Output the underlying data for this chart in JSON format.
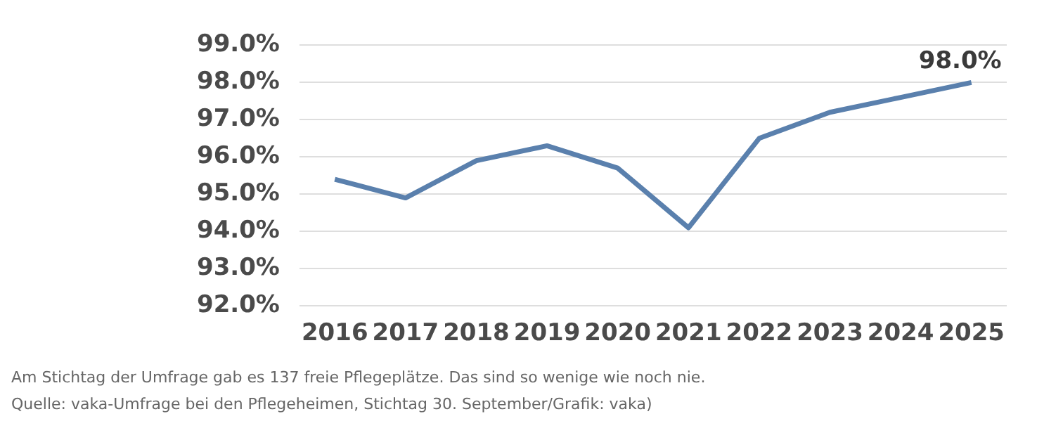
{
  "chart_data": {
    "type": "line",
    "categories": [
      "2016",
      "2017",
      "2018",
      "2019",
      "2020",
      "2021",
      "2022",
      "2023",
      "2024",
      "2025"
    ],
    "series": [
      {
        "color": "#5a80ad",
        "values": [
          95.4,
          94.9,
          95.9,
          96.3,
          95.7,
          94.1,
          96.5,
          97.2,
          97.6,
          98.0
        ],
        "value_labels": [
          null,
          null,
          null,
          null,
          null,
          null,
          null,
          null,
          null,
          "98.0%"
        ]
      }
    ],
    "ylim": [
      92,
      99
    ],
    "yticks": [
      {
        "value": 92,
        "label": "92.0%"
      },
      {
        "value": 93,
        "label": "93.0%"
      },
      {
        "value": 94,
        "label": "94.0%"
      },
      {
        "value": 95,
        "label": "95.0%"
      },
      {
        "value": 96,
        "label": "96.0%"
      },
      {
        "value": 97,
        "label": "97.0%"
      },
      {
        "value": 98,
        "label": "98.0%"
      },
      {
        "value": 99,
        "label": "99.0%"
      }
    ],
    "grid": "y",
    "marker": "none",
    "line_style": "solid",
    "legend": false,
    "annotations": [
      "Am Stichtag der Umfrage gab es 137 freie Pflegeplätze. Das sind so wenige wie noch nie.",
      "Quelle: vaka-Umfrage bei den Pflegeheimen, Stichtag 30. September/Grafik: vaka)"
    ]
  }
}
